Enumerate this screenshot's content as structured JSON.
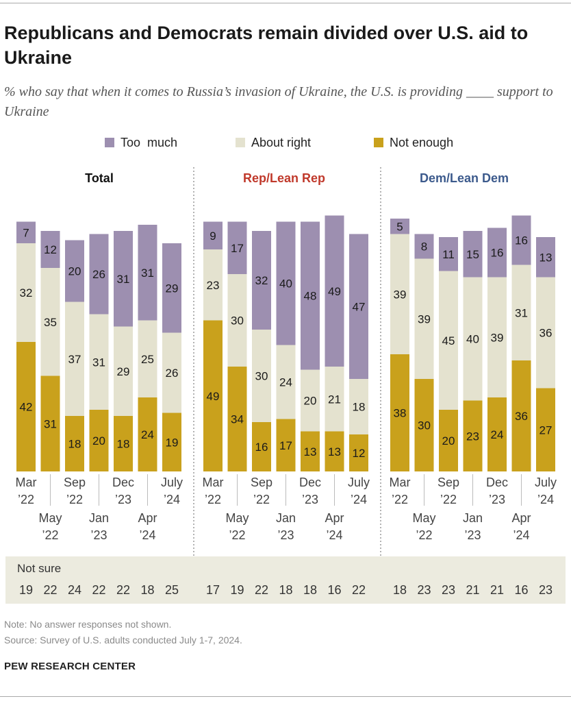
{
  "title": "Republicans and Democrats remain divided over U.S. aid to Ukraine",
  "subtitle": "% who say that when it comes to Russia’s invasion of Ukraine, the U.S. is providing ____ support to Ukraine",
  "legend": [
    {
      "label": "Too  much",
      "color": "#9d8fb0"
    },
    {
      "label": "About right",
      "color": "#e4e2cf"
    },
    {
      "label": "Not enough",
      "color": "#c9a11c"
    }
  ],
  "not_sure_label": "Not sure",
  "note": "Note: No answer responses not shown.",
  "source": "Source: Survey of U.S. adults conducted July 1-7, 2024.",
  "brand": "PEW RESEARCH CENTER",
  "chart_data": {
    "type": "bar",
    "stacked": true,
    "categories": [
      "Mar '22",
      "May '22",
      "Sep '22",
      "Jan '23",
      "Dec '23",
      "Apr '24",
      "July '24"
    ],
    "tick_labels": [
      {
        "month": "Mar",
        "year": "’22",
        "row": "top"
      },
      {
        "month": "May",
        "year": "’22",
        "row": "bottom"
      },
      {
        "month": "Sep",
        "year": "’22",
        "row": "top"
      },
      {
        "month": "Jan",
        "year": "’23",
        "row": "bottom"
      },
      {
        "month": "Dec",
        "year": "’23",
        "row": "top"
      },
      {
        "month": "Apr",
        "year": "’24",
        "row": "bottom"
      },
      {
        "month": "July",
        "year": "’24",
        "row": "top"
      }
    ],
    "series_names": [
      "Too  much",
      "About right",
      "Not enough"
    ],
    "colors": {
      "too_much": "#9d8fb0",
      "about_right": "#e4e2cf",
      "not_enough": "#c9a11c"
    },
    "panels": [
      {
        "title": "Total",
        "title_color": "#111111",
        "too_much": [
          7,
          12,
          20,
          26,
          31,
          31,
          29
        ],
        "about_right": [
          32,
          35,
          37,
          31,
          29,
          25,
          26
        ],
        "not_enough": [
          42,
          31,
          18,
          20,
          18,
          24,
          19
        ],
        "not_sure": [
          19,
          22,
          24,
          22,
          22,
          18,
          25
        ]
      },
      {
        "title": "Rep/Lean Rep",
        "title_color": "#c0392b",
        "too_much": [
          9,
          17,
          32,
          40,
          48,
          49,
          47
        ],
        "about_right": [
          23,
          30,
          30,
          24,
          20,
          21,
          18
        ],
        "not_enough": [
          49,
          34,
          16,
          17,
          13,
          13,
          12
        ],
        "not_sure": [
          17,
          19,
          22,
          18,
          18,
          16,
          22
        ]
      },
      {
        "title": "Dem/Lean Dem",
        "title_color": "#3c5a8c",
        "too_much": [
          5,
          8,
          11,
          15,
          16,
          16,
          13
        ],
        "about_right": [
          39,
          39,
          45,
          40,
          39,
          31,
          36
        ],
        "not_enough": [
          38,
          30,
          20,
          23,
          24,
          36,
          27
        ],
        "not_sure": [
          18,
          23,
          23,
          21,
          21,
          16,
          23
        ]
      }
    ]
  }
}
